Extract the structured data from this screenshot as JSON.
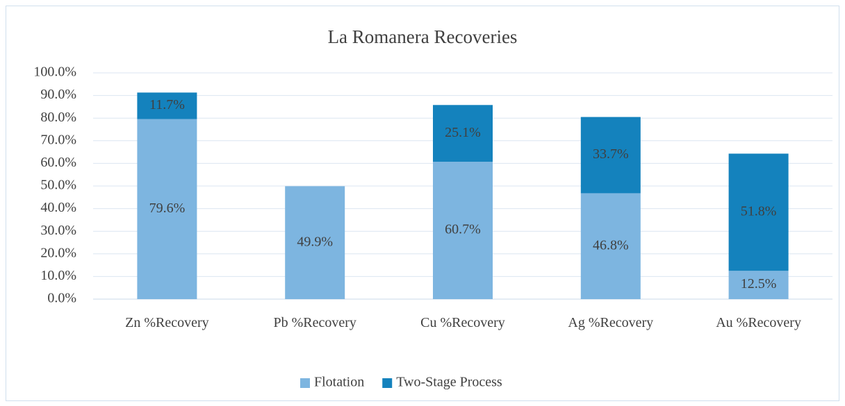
{
  "chart_data": {
    "type": "stacked_bar",
    "title": "La Romanera Recoveries",
    "categories": [
      "Zn %Recovery",
      "Pb %Recovery",
      "Cu %Recovery",
      "Ag %Recovery",
      "Au %Recovery"
    ],
    "series": [
      {
        "name": "Flotation",
        "color": "#7db5e0",
        "values": [
          79.6,
          49.9,
          60.7,
          46.8,
          12.5
        ],
        "value_labels": [
          "79.6%",
          "49.9%",
          "60.7%",
          "46.8%",
          "12.5%"
        ]
      },
      {
        "name": "Two-Stage Process",
        "color": "#1482bd",
        "values": [
          11.7,
          null,
          25.1,
          33.7,
          51.8
        ],
        "value_labels": [
          "11.7%",
          null,
          "25.1%",
          "33.7%",
          "51.8%"
        ]
      }
    ],
    "ylim": [
      0,
      100
    ],
    "yticks": [
      {
        "value": 0,
        "label": "0.0%"
      },
      {
        "value": 10,
        "label": "10.0%"
      },
      {
        "value": 20,
        "label": "20.0%"
      },
      {
        "value": 30,
        "label": "30.0%"
      },
      {
        "value": 40,
        "label": "40.0%"
      },
      {
        "value": 50,
        "label": "50.0%"
      },
      {
        "value": 60,
        "label": "60.0%"
      },
      {
        "value": 70,
        "label": "70.0%"
      },
      {
        "value": 80,
        "label": "80.0%"
      },
      {
        "value": 90,
        "label": "90.0%"
      },
      {
        "value": 100,
        "label": "100.0%"
      }
    ],
    "grid": true,
    "legend": "bottom"
  }
}
